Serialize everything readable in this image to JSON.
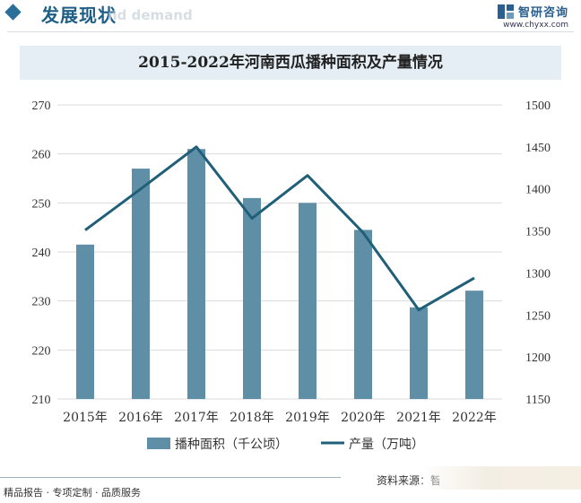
{
  "header": {
    "section_title": "发展现状",
    "ghost_text": "nd demand",
    "brand_name": "智研咨询",
    "brand_url": "www.chyxx.com"
  },
  "footer": {
    "left_text": "精品报告 · 专项定制 · 品质服务",
    "source_text": "资料来源：智研咨询整理"
  },
  "colors": {
    "bar": "#5f8fa7",
    "line": "#1f5f78",
    "title_band": "#e4eef4",
    "brand": "#2a5f8f"
  },
  "chart_data": {
    "type": "bar+line",
    "title": "2015-2022年河南西瓜播种面积及产量情况",
    "categories": [
      "2015年",
      "2016年",
      "2017年",
      "2018年",
      "2019年",
      "2020年",
      "2021年",
      "2022年"
    ],
    "series": [
      {
        "name": "播种面积（千公顷）",
        "type": "bar",
        "axis": "left",
        "values": [
          241.5,
          257,
          261,
          251,
          250,
          244.5,
          228.7,
          232.1
        ]
      },
      {
        "name": "产量（万吨）",
        "type": "line",
        "axis": "right",
        "values": [
          1351,
          1400,
          1450,
          1365,
          1416,
          1348,
          1256,
          1294
        ]
      }
    ],
    "y_left": {
      "ylim": [
        210,
        270
      ],
      "ticks": [
        "270",
        "260",
        "250",
        "240",
        "230",
        "220",
        "210"
      ]
    },
    "y_right": {
      "ylim": [
        1150,
        1500
      ],
      "ticks": [
        "1500",
        "1450",
        "1400",
        "1350",
        "1300",
        "1250",
        "1200",
        "1150"
      ]
    },
    "legend_position": "bottom",
    "legend_bar": "播种面积（千公顷）",
    "legend_line": "产量（万吨）",
    "grid": true
  }
}
